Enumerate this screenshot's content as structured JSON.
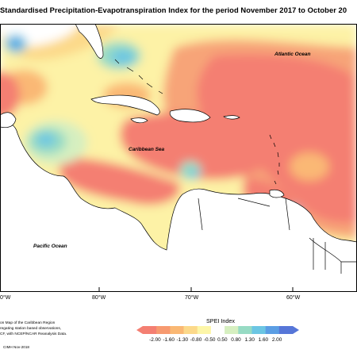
{
  "title": "Standardised Precipitation-Evapotranspiration Index for the period November 2017 to October 20",
  "labels": {
    "atlantic": "Atlantic Ocean",
    "caribbean": "Caribbean Sea",
    "pacific": "Pacific Ocean"
  },
  "longitudes": [
    "0°W",
    "80°W",
    "70°W",
    "60°W"
  ],
  "legend": {
    "title": "SPEI Index",
    "ticks": [
      "-2.00",
      "-1.60",
      "-1.30",
      "-0.80",
      "-0.50",
      "0.50",
      "0.80",
      "1.30",
      "1.60",
      "2.00"
    ],
    "colors": [
      "#f47f72",
      "#f79a70",
      "#fab874",
      "#fcd98a",
      "#fdf6a8",
      "#ffffff",
      "#d6efc0",
      "#97dbc4",
      "#6cc6e3",
      "#5b9ee4",
      "#5676d8"
    ]
  },
  "notes": [
    "on Map of the Caribbean Region",
    "regating station based observations,",
    "CF, with NCEP/NCAR Reanalysis Data."
  ],
  "credit": "CIMH Nov-2018"
}
